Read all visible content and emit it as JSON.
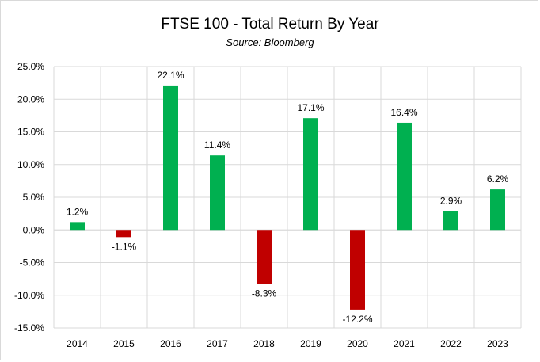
{
  "chart_data": {
    "type": "bar",
    "title": "FTSE 100 - Total Return By Year",
    "subtitle": "Source: Bloomberg",
    "xlabel": "",
    "ylabel": "",
    "categories": [
      "2014",
      "2015",
      "2016",
      "2017",
      "2018",
      "2019",
      "2020",
      "2021",
      "2022",
      "2023"
    ],
    "values": [
      1.2,
      -1.1,
      22.1,
      11.4,
      -8.3,
      17.1,
      -12.2,
      16.4,
      2.9,
      6.2
    ],
    "data_labels": [
      "1.2%",
      "-1.1%",
      "22.1%",
      "11.4%",
      "-8.3%",
      "17.1%",
      "-12.2%",
      "16.4%",
      "2.9%",
      "6.2%"
    ],
    "ylim": [
      -15,
      25
    ],
    "yticks": [
      25,
      20,
      15,
      10,
      5,
      0,
      -5,
      -10,
      -15
    ],
    "ytick_labels": [
      "25.0%",
      "20.0%",
      "15.0%",
      "10.0%",
      "5.0%",
      "0.0%",
      "-5.0%",
      "-10.0%",
      "-15.0%"
    ],
    "grid": true,
    "legend": "none",
    "colors": {
      "positive": "#00b050",
      "negative": "#c00000",
      "grid": "#d9d9d9"
    }
  }
}
